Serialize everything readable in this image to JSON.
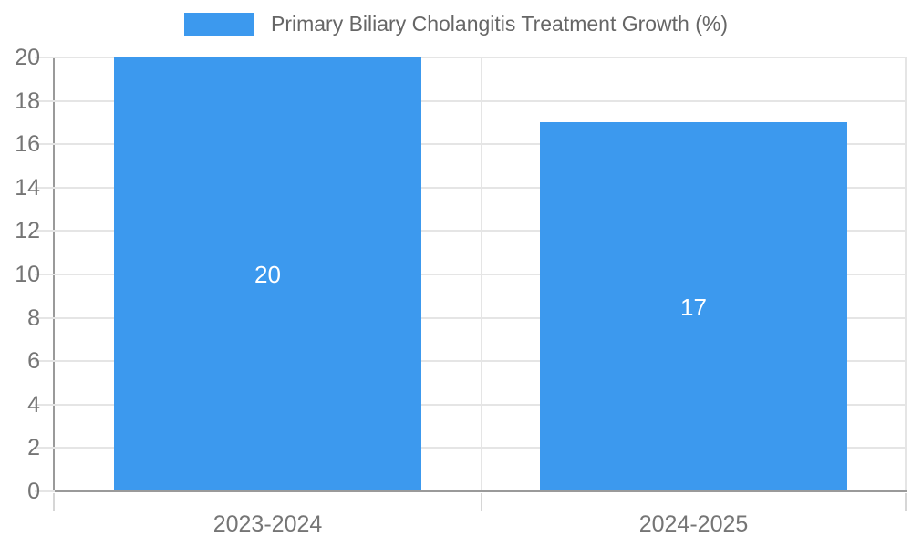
{
  "chart_data": {
    "type": "bar",
    "title": "",
    "legend_label": "Primary Biliary Cholangitis Treatment Growth (%)",
    "legend_position": "top-center",
    "categories": [
      "2023-2024",
      "2024-2025"
    ],
    "values": [
      20,
      17
    ],
    "data_labels": [
      "20",
      "17"
    ],
    "xlabel": "",
    "ylabel": "",
    "ylim": [
      0,
      20
    ],
    "ytick_step": 2,
    "yticks": [
      0,
      2,
      4,
      6,
      8,
      10,
      12,
      14,
      16,
      18,
      20
    ],
    "grid": true,
    "colors": {
      "bar": "#3c99ee",
      "bar_label_text": "#ffffff",
      "gridline": "#e5e5e5",
      "axis_line": "#9a9a9a",
      "tick_label": "#757575",
      "legend_text": "#666666",
      "background": "#ffffff"
    }
  }
}
